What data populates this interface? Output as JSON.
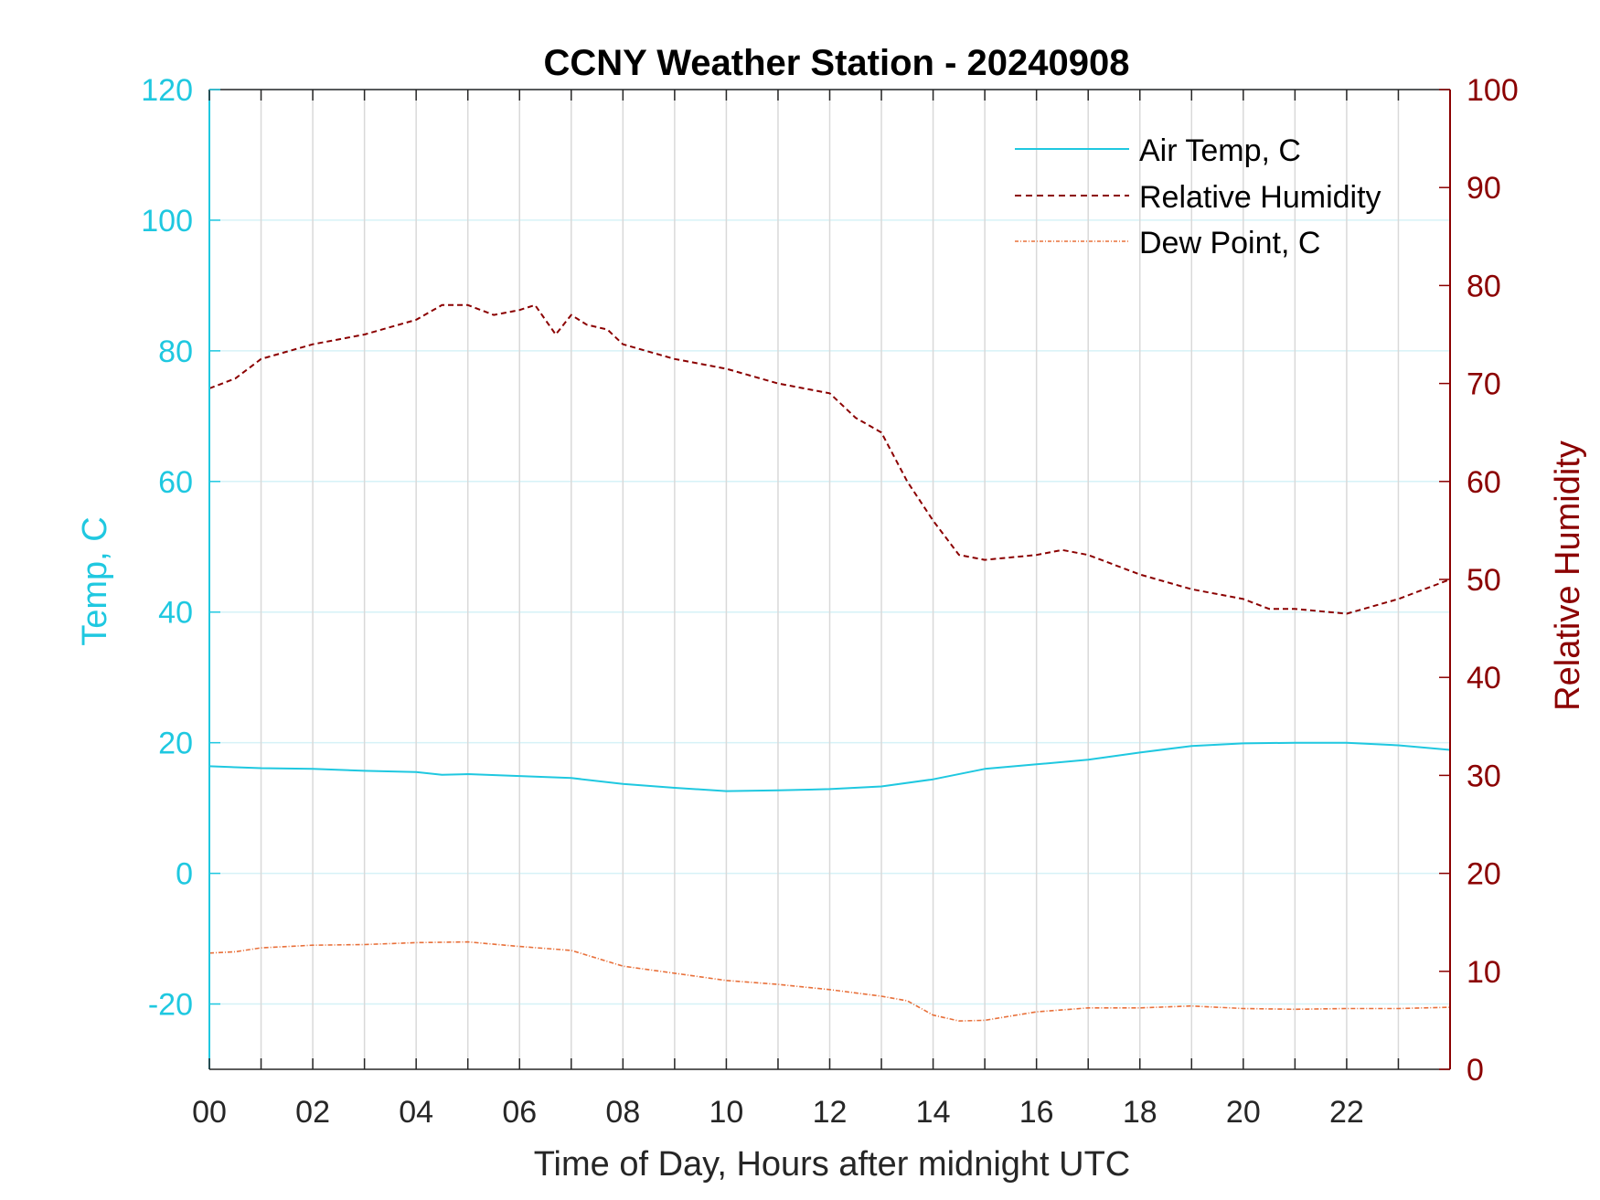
{
  "chart_data": {
    "type": "line",
    "title": "CCNY Weather Station - 20240908",
    "xlabel": "Time of Day, Hours after midnight UTC",
    "ylabel_left": "Temp, C",
    "ylabel_right": "Relative Humidity",
    "xlim": [
      0,
      24
    ],
    "ylim_left": [
      -30,
      120
    ],
    "ylim_right": [
      0,
      100
    ],
    "x_ticks": [
      0,
      1,
      2,
      3,
      4,
      5,
      6,
      7,
      8,
      9,
      10,
      11,
      12,
      13,
      14,
      15,
      16,
      17,
      18,
      19,
      20,
      21,
      22,
      23
    ],
    "x_tick_labels": [
      "00",
      "02",
      "04",
      "06",
      "08",
      "10",
      "12",
      "14",
      "16",
      "18",
      "20",
      "22"
    ],
    "y_ticks_left": [
      "-20",
      "0",
      "20",
      "40",
      "60",
      "80",
      "100",
      "120"
    ],
    "y_ticks_right": [
      "0",
      "10",
      "20",
      "30",
      "40",
      "50",
      "60",
      "70",
      "80",
      "90",
      "100"
    ],
    "grid": true,
    "legend_position": "top-right",
    "colors": {
      "temp": "#1FC8E0",
      "humidity": "#8B0000",
      "dewpoint": "#E8703A",
      "grid_vertical": "#d9d9d9",
      "grid_horizontal": "#d6f2f7"
    },
    "series": [
      {
        "name": "Air Temp, C",
        "axis": "left",
        "style": "solid",
        "x": [
          0,
          1,
          2,
          3,
          4,
          4.5,
          5,
          6,
          7,
          8,
          9,
          10,
          11,
          12,
          13,
          14,
          15,
          16,
          17,
          18,
          19,
          20,
          21,
          22,
          23,
          24
        ],
        "values": [
          16.4,
          16.1,
          16.0,
          15.7,
          15.5,
          15.1,
          15.2,
          14.9,
          14.6,
          13.7,
          13.1,
          12.6,
          12.7,
          12.9,
          13.3,
          14.4,
          16.0,
          16.7,
          17.4,
          18.5,
          19.5,
          19.9,
          20.0,
          20.0,
          19.6,
          18.9
        ]
      },
      {
        "name": "Relative Humidity",
        "axis": "right",
        "style": "dashed",
        "x": [
          0,
          0.5,
          1,
          2,
          3,
          4,
          4.5,
          5,
          5.5,
          6,
          6.3,
          6.7,
          7,
          7.3,
          7.7,
          8,
          9,
          10,
          11,
          12,
          12.5,
          13,
          13.5,
          14,
          14.5,
          15,
          16,
          16.5,
          17,
          18,
          19,
          20,
          20.5,
          21,
          22,
          23,
          24
        ],
        "values": [
          69.5,
          70.5,
          72.5,
          74.0,
          75.0,
          76.5,
          78.0,
          78.0,
          77.0,
          77.5,
          78.0,
          75.0,
          77.0,
          76.0,
          75.5,
          74.0,
          72.5,
          71.5,
          70.0,
          69.0,
          66.5,
          65.0,
          60.0,
          56.0,
          52.5,
          52.0,
          52.5,
          53.0,
          52.5,
          50.5,
          49.0,
          48.0,
          47.0,
          47.0,
          46.5,
          48.0,
          50.0
        ]
      },
      {
        "name": "Dew Point, C",
        "axis": "left",
        "style": "dash-dot",
        "x": [
          0,
          0.5,
          1,
          2,
          3,
          4,
          5,
          6,
          7,
          8,
          9,
          10,
          11,
          12,
          13,
          13.5,
          14,
          14.5,
          15,
          16,
          17,
          18,
          19,
          20,
          21,
          22,
          23,
          24
        ],
        "values": [
          -12.2,
          -12.0,
          -11.4,
          -11.0,
          -10.9,
          -10.6,
          -10.5,
          -11.2,
          -11.8,
          -14.2,
          -15.3,
          -16.4,
          -17.0,
          -17.8,
          -18.8,
          -19.5,
          -21.7,
          -22.6,
          -22.5,
          -21.2,
          -20.6,
          -20.6,
          -20.3,
          -20.7,
          -20.8,
          -20.7,
          -20.7,
          -20.5
        ]
      }
    ]
  }
}
